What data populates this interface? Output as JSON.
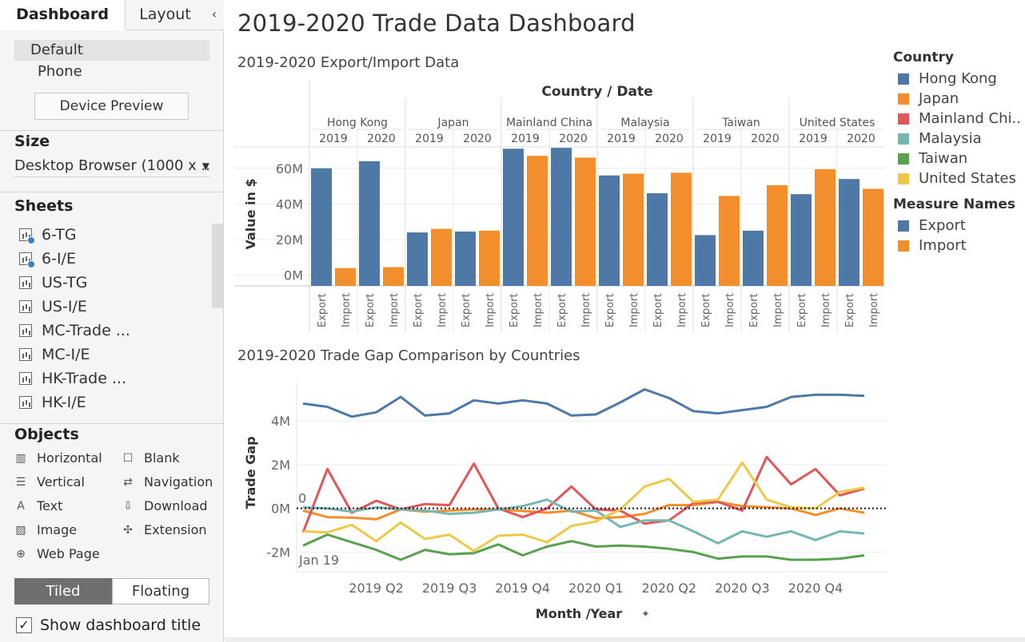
{
  "sidebar": {
    "tabs": [
      "Dashboard",
      "Layout"
    ],
    "collapse_icon": "chevron-left-icon",
    "device_options": [
      "Default",
      "Phone"
    ],
    "device_preview_label": "Device Preview",
    "size_heading": "Size",
    "size_value": "Desktop Browser (1000 x ...",
    "sheets_heading": "Sheets",
    "sheets": [
      {
        "label": "6-TG",
        "in_use": true
      },
      {
        "label": "6-I/E",
        "in_use": true
      },
      {
        "label": "US-TG",
        "in_use": false
      },
      {
        "label": "US-I/E",
        "in_use": false
      },
      {
        "label": "MC-Trade ...",
        "in_use": false
      },
      {
        "label": "MC-I/E",
        "in_use": false
      },
      {
        "label": "HK-Trade ...",
        "in_use": false
      },
      {
        "label": "HK-I/E",
        "in_use": false
      }
    ],
    "objects_heading": "Objects",
    "objects": [
      {
        "label": "Horizontal",
        "icon": "horizontal-container-icon"
      },
      {
        "label": "Blank",
        "icon": "blank-icon"
      },
      {
        "label": "Vertical",
        "icon": "vertical-container-icon"
      },
      {
        "label": "Navigation",
        "icon": "navigation-icon"
      },
      {
        "label": "Text",
        "icon": "text-icon"
      },
      {
        "label": "Download",
        "icon": "download-icon"
      },
      {
        "label": "Image",
        "icon": "image-icon"
      },
      {
        "label": "Extension",
        "icon": "extension-icon"
      },
      {
        "label": "Web Page",
        "icon": "globe-icon"
      }
    ],
    "layout_modes": [
      "Tiled",
      "Floating"
    ],
    "show_title_label": "Show dashboard title",
    "show_title_checked": true
  },
  "dashboard": {
    "title": "2019-2020 Trade Data Dashboard",
    "bar_subtitle": "2019-2020 Export/Import Data",
    "line_subtitle": "2019-2020 Trade Gap Comparison by Countries"
  },
  "legend": {
    "country_heading": "Country",
    "countries": [
      {
        "name": "Hong Kong",
        "color": "#4e79a7"
      },
      {
        "name": "Japan",
        "color": "#f28e2b"
      },
      {
        "name": "Mainland Chi..",
        "color": "#e15759"
      },
      {
        "name": "Malaysia",
        "color": "#76b7b2"
      },
      {
        "name": "Taiwan",
        "color": "#59a14f"
      },
      {
        "name": "United States",
        "color": "#edc948"
      }
    ],
    "measure_heading": "Measure Names",
    "measures": [
      {
        "name": "Export",
        "color": "#4e79a7"
      },
      {
        "name": "Import",
        "color": "#f28e2b"
      }
    ]
  },
  "chart_data": [
    {
      "type": "bar",
      "title": "2019-2020 Export/Import Data",
      "column_header": "Country  /  Date",
      "ylabel": "Value in $",
      "yticks": [
        "0M",
        "20M",
        "40M",
        "60M"
      ],
      "ylim": [
        -6,
        72
      ],
      "countries": [
        "Hong Kong",
        "Japan",
        "Mainland China",
        "Malaysia",
        "Taiwan",
        "United States"
      ],
      "years": [
        "2019",
        "2020"
      ],
      "measures": [
        "Export",
        "Import"
      ],
      "values": {
        "Hong Kong": {
          "2019": [
            60,
            4
          ],
          "2020": [
            64,
            4.5
          ]
        },
        "Japan": {
          "2019": [
            24,
            26
          ],
          "2020": [
            24.5,
            25
          ]
        },
        "Mainland China": {
          "2019": [
            71,
            67
          ],
          "2020": [
            71.5,
            66
          ]
        },
        "Malaysia": {
          "2019": [
            56,
            57
          ],
          "2020": [
            46,
            57.5
          ]
        },
        "Taiwan": {
          "2019": [
            22.5,
            44.5
          ],
          "2020": [
            25,
            50.5
          ]
        },
        "United States": {
          "2019": [
            45.5,
            59.5
          ],
          "2020": [
            54,
            48.5
          ]
        }
      }
    },
    {
      "type": "line",
      "title": "2019-2020 Trade Gap Comparison by Countries",
      "xlabel": "Month /Year",
      "ylabel": "Trade Gap",
      "x_ticks": [
        "2019 Q2",
        "2019 Q3",
        "2019 Q4",
        "2020 Q1",
        "2020 Q2",
        "2020 Q3",
        "2020 Q4"
      ],
      "start_label": "Jan 19",
      "zero_label": "0",
      "yticks": [
        "-2M",
        "0M",
        "2M",
        "4M"
      ],
      "ylim": [
        -2.9,
        5.8
      ],
      "months": [
        "Jan 2019",
        "Feb 2019",
        "Mar 2019",
        "Apr 2019",
        "May 2019",
        "Jun 2019",
        "Jul 2019",
        "Aug 2019",
        "Sep 2019",
        "Oct 2019",
        "Nov 2019",
        "Dec 2019",
        "Jan 2020",
        "Feb 2020",
        "Mar 2020",
        "Apr 2020",
        "May 2020",
        "Jun 2020",
        "Jul 2020",
        "Aug 2020",
        "Sep 2020",
        "Oct 2020",
        "Nov 2020",
        "Dec 2020"
      ],
      "series": [
        {
          "name": "Hong Kong",
          "color": "#4e79a7",
          "values": [
            4.8,
            4.65,
            4.2,
            4.4,
            5.1,
            4.25,
            4.35,
            4.95,
            4.8,
            4.95,
            4.8,
            4.25,
            4.3,
            4.85,
            5.45,
            5.05,
            4.45,
            4.35,
            4.5,
            4.65,
            5.1,
            5.2,
            5.2,
            5.15
          ]
        },
        {
          "name": "Japan",
          "color": "#f28e2b",
          "values": [
            -0.1,
            -0.4,
            -0.42,
            -0.5,
            -0.05,
            -0.15,
            -0.1,
            -0.05,
            -0.05,
            -0.12,
            -0.2,
            -0.1,
            -0.45,
            -0.4,
            -0.25,
            0.15,
            0.15,
            0.3,
            0.1,
            0.05,
            0.0,
            -0.3,
            0.0,
            -0.2
          ]
        },
        {
          "name": "Mainland China",
          "color": "#e15759",
          "values": [
            -1.1,
            1.8,
            -0.2,
            0.35,
            -0.05,
            0.2,
            0.15,
            2.05,
            0.0,
            -0.4,
            0.0,
            1.0,
            -0.05,
            -0.1,
            -0.7,
            -0.55,
            0.25,
            0.3,
            -0.1,
            2.35,
            1.1,
            1.8,
            0.6,
            0.9
          ]
        },
        {
          "name": "Malaysia",
          "color": "#76b7b2",
          "values": [
            0.05,
            0.0,
            -0.15,
            0.05,
            -0.05,
            -0.1,
            -0.25,
            -0.2,
            -0.05,
            0.1,
            0.4,
            -0.15,
            -0.1,
            -0.85,
            -0.55,
            -0.55,
            -1.05,
            -1.6,
            -1.05,
            -1.3,
            -1.05,
            -1.45,
            -1.05,
            -1.15
          ]
        },
        {
          "name": "Taiwan",
          "color": "#59a14f",
          "values": [
            -1.7,
            -1.2,
            -1.55,
            -1.9,
            -2.35,
            -1.9,
            -2.1,
            -2.05,
            -1.65,
            -2.15,
            -1.75,
            -1.5,
            -1.75,
            -1.7,
            -1.75,
            -1.85,
            -2.0,
            -2.3,
            -2.2,
            -2.2,
            -2.35,
            -2.35,
            -2.3,
            -2.15
          ]
        },
        {
          "name": "United States",
          "color": "#edc948",
          "values": [
            -1.05,
            -1.1,
            -0.75,
            -1.5,
            -0.65,
            -1.4,
            -1.2,
            -1.95,
            -1.25,
            -1.2,
            -1.55,
            -0.8,
            -0.6,
            -0.05,
            1.0,
            1.35,
            0.3,
            0.4,
            2.1,
            0.4,
            0.05,
            0.0,
            0.75,
            0.95
          ]
        }
      ]
    }
  ]
}
